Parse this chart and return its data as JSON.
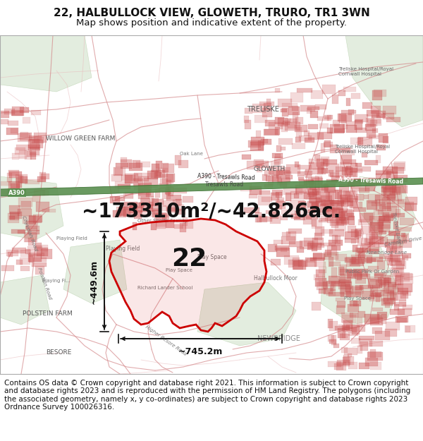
{
  "title_line1": "22, HALBULLOCK VIEW, GLOWETH, TRURO, TR1 3WN",
  "title_line2": "Map shows position and indicative extent of the property.",
  "area_text": "~173310m²/~42.826ac.",
  "label_number": "22",
  "dim_width": "~745.2m",
  "dim_height": "~449.6m",
  "copyright_text": "Contains OS data © Crown copyright and database right 2021. This information is subject to Crown copyright and database rights 2023 and is reproduced with the permission of HM Land Registry. The polygons (including the associated geometry, namely x, y co-ordinates) are subject to Crown copyright and database rights 2023 Ordnance Survey 100026316.",
  "title_bg": "#ffffff",
  "footer_bg": "#ffffff",
  "map_bg": "#f5f0eb",
  "title_fs": 11,
  "subtitle_fs": 9.5,
  "area_fs": 20,
  "label_fs": 26,
  "dim_fs": 9,
  "copy_fs": 7.5,
  "poly_color": "#cc0000",
  "dim_color": "#111111",
  "road_pink": "#d4888a",
  "road_pink_light": "#e8b8ba",
  "field_green": "#c8ddc0",
  "a390_green": "#5a8f50",
  "a390_edge": "#3a6f30"
}
